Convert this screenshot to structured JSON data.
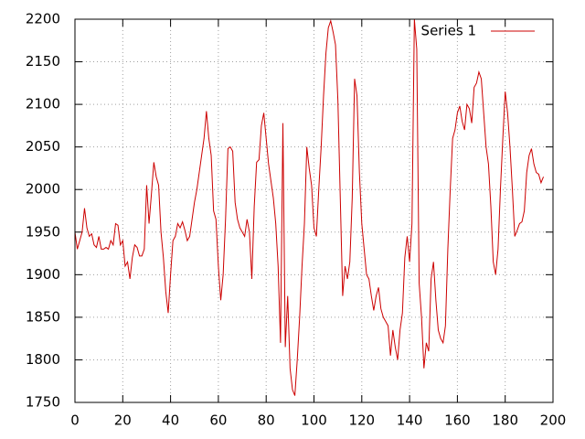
{
  "chart_data": {
    "type": "line",
    "xlim": [
      0,
      200
    ],
    "xticks": [
      0,
      20,
      40,
      60,
      80,
      100,
      120,
      140,
      160,
      180,
      200
    ],
    "ylim": [
      1750,
      2200
    ],
    "yticks": [
      1750,
      1800,
      1850,
      1900,
      1950,
      2000,
      2050,
      2100,
      2150,
      2200
    ],
    "grid": true,
    "legend": "top-right",
    "x": [
      0,
      1,
      2,
      3,
      4,
      5,
      6,
      7,
      8,
      9,
      10,
      11,
      12,
      13,
      14,
      15,
      16,
      17,
      18,
      19,
      20,
      21,
      22,
      23,
      24,
      25,
      26,
      27,
      28,
      29,
      30,
      31,
      32,
      33,
      34,
      35,
      36,
      37,
      38,
      39,
      40,
      41,
      42,
      43,
      44,
      45,
      46,
      47,
      48,
      49,
      50,
      51,
      52,
      53,
      54,
      55,
      56,
      57,
      58,
      59,
      60,
      61,
      62,
      63,
      64,
      65,
      66,
      67,
      68,
      69,
      70,
      71,
      72,
      73,
      74,
      75,
      76,
      77,
      78,
      79,
      80,
      81,
      82,
      83,
      84,
      85,
      86,
      87,
      88,
      89,
      90,
      91,
      92,
      93,
      94,
      95,
      96,
      97,
      98,
      99,
      100,
      101,
      102,
      103,
      104,
      105,
      106,
      107,
      108,
      109,
      110,
      111,
      112,
      113,
      114,
      115,
      116,
      117,
      118,
      119,
      120,
      121,
      122,
      123,
      124,
      125,
      126,
      127,
      128,
      129,
      130,
      131,
      132,
      133,
      134,
      135,
      136,
      137,
      138,
      139,
      140,
      141,
      142,
      143,
      144,
      145,
      146,
      147,
      148,
      149,
      150,
      151,
      152,
      153,
      154,
      155,
      156,
      157,
      158,
      159,
      160,
      161,
      162,
      163,
      164,
      165,
      166,
      167,
      168,
      169,
      170,
      171,
      172,
      173,
      174,
      175,
      176,
      177,
      178,
      179,
      180,
      181,
      182,
      183,
      184,
      185,
      186,
      187,
      188,
      189,
      190,
      191,
      192,
      193,
      194,
      195,
      196
    ],
    "series": [
      {
        "name": "Series 1",
        "color": "#cc0000",
        "values": [
          1950,
          1930,
          1940,
          1950,
          1978,
          1955,
          1945,
          1948,
          1935,
          1932,
          1945,
          1930,
          1930,
          1932,
          1930,
          1940,
          1935,
          1960,
          1958,
          1935,
          1940,
          1910,
          1915,
          1895,
          1920,
          1935,
          1932,
          1922,
          1922,
          1930,
          2005,
          1960,
          1995,
          2032,
          2015,
          2005,
          1950,
          1920,
          1880,
          1855,
          1900,
          1940,
          1945,
          1960,
          1955,
          1962,
          1952,
          1940,
          1945,
          1965,
          1985,
          2000,
          2020,
          2040,
          2060,
          2092,
          2060,
          2040,
          1975,
          1965,
          1910,
          1870,
          1900,
          1965,
          2048,
          2050,
          2045,
          1985,
          1965,
          1955,
          1950,
          1945,
          1965,
          1950,
          1895,
          1980,
          2032,
          2035,
          2075,
          2090,
          2060,
          2030,
          2010,
          1990,
          1960,
          1910,
          1820,
          2078,
          1815,
          1875,
          1790,
          1765,
          1758,
          1800,
          1850,
          1910,
          1960,
          2050,
          2025,
          2005,
          1955,
          1945,
          2000,
          2050,
          2110,
          2160,
          2190,
          2198,
          2185,
          2170,
          2105,
          1990,
          1875,
          1910,
          1895,
          1915,
          1990,
          2130,
          2110,
          2020,
          1960,
          1930,
          1900,
          1895,
          1875,
          1858,
          1875,
          1885,
          1860,
          1850,
          1845,
          1840,
          1805,
          1835,
          1815,
          1800,
          1835,
          1855,
          1920,
          1945,
          1915,
          1960,
          2200,
          2165,
          1890,
          1850,
          1790,
          1820,
          1810,
          1895,
          1915,
          1870,
          1835,
          1825,
          1820,
          1840,
          1930,
          2000,
          2060,
          2070,
          2090,
          2098,
          2080,
          2070,
          2100,
          2095,
          2078,
          2120,
          2125,
          2138,
          2130,
          2090,
          2050,
          2030,
          1980,
          1915,
          1900,
          1930,
          2000,
          2060,
          2115,
          2090,
          2050,
          2000,
          1945,
          1952,
          1960,
          1962,
          1975,
          2020,
          2040,
          2048,
          2030,
          2020,
          2018,
          2008,
          2015
        ]
      }
    ]
  }
}
